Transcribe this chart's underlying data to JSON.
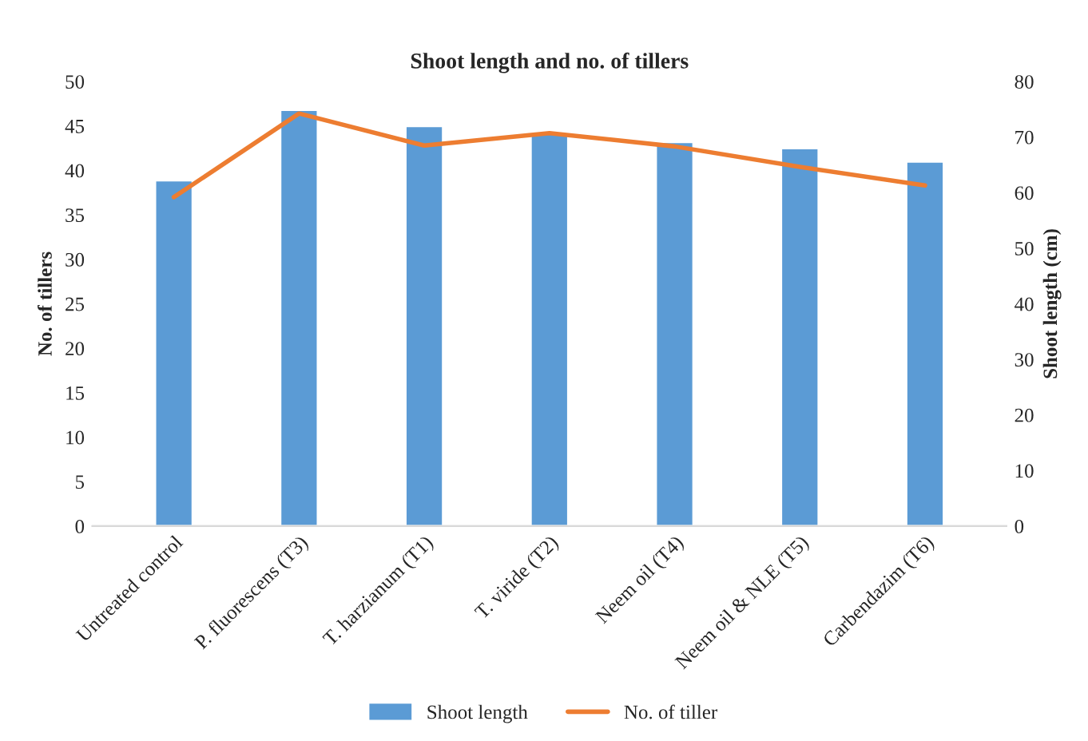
{
  "chart_data": {
    "type": "bar",
    "title": "Shoot length and no. of tillers",
    "ylabel": "No. of tillers",
    "y2label": "Shoot length (cm)",
    "categories": [
      "Untreated control",
      "P. fluorescens (T3)",
      "T. harzianum (T1)",
      "T. viride (T2)",
      "Neem oil (T4)",
      "Neem oil & NLE (T5)",
      "Carbendazim (T6)"
    ],
    "series": [
      {
        "name": "Shoot length",
        "axis": "y2",
        "color": "#5b9bd5",
        "values": [
          62.2,
          74.9,
          72.0,
          70.8,
          69.1,
          68.0,
          65.6
        ]
      },
      {
        "name": "No. of tiller",
        "type": "line",
        "axis": "y",
        "color": "#ed7d31",
        "values": [
          37.0,
          46.4,
          42.8,
          44.2,
          42.7,
          40.4,
          38.3
        ]
      }
    ],
    "ylim": [
      0,
      50
    ],
    "yticks": [
      0,
      5,
      10,
      15,
      20,
      25,
      30,
      35,
      40,
      45,
      50
    ],
    "y2lim": [
      0,
      80
    ],
    "y2ticks": [
      0,
      10,
      20,
      30,
      40,
      50,
      60,
      70,
      80
    ],
    "grid": false,
    "legend": "bottom",
    "marker": "none",
    "line_style": "solid"
  }
}
